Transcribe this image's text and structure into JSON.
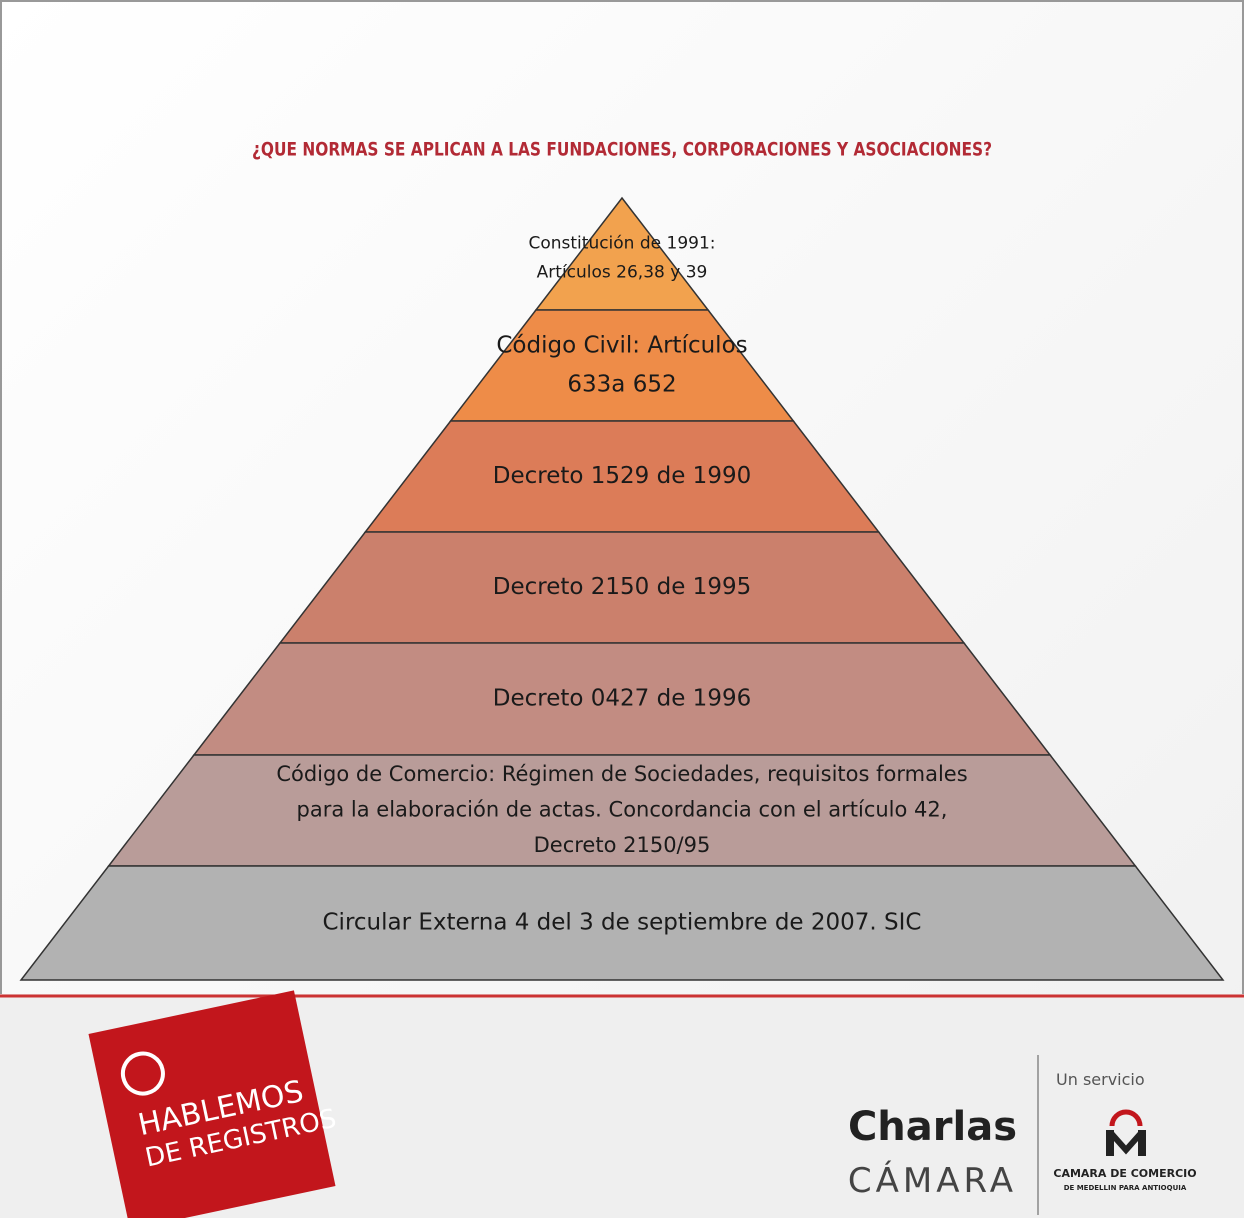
{
  "title": "¿QUE NORMAS SE APLICAN A LAS FUNDACIONES, CORPORACIONES Y ASOCIACIONES?",
  "pyramid": [
    {
      "lines": [
        "Constitución de 1991:",
        "Artículos 26,38 y 39"
      ]
    },
    {
      "lines": [
        "Código Civil: Artículos",
        "633a 652"
      ]
    },
    {
      "lines": [
        "Decreto 1529 de 1990"
      ]
    },
    {
      "lines": [
        "Decreto 2150 de 1995"
      ]
    },
    {
      "lines": [
        "Decreto 0427 de 1996"
      ]
    },
    {
      "lines": [
        "Código de Comercio: Régimen de Sociedades, requisitos formales",
        "para la elaboración de actas. Concordancia con el artículo 42,",
        "Decreto 2150/95"
      ]
    },
    {
      "lines": [
        "Circular Externa 4 del 3 de septiembre de 2007. SIC"
      ]
    }
  ],
  "footer": {
    "logo": [
      "HABLEMOS",
      "DE REGISTROS"
    ],
    "brand": [
      "Charlas",
      "CÁMARA"
    ],
    "service": "Un servicio",
    "chamber": [
      "CAMARA DE COMERCIO",
      "DE MEDELLIN PARA ANTIOQUIA"
    ]
  }
}
